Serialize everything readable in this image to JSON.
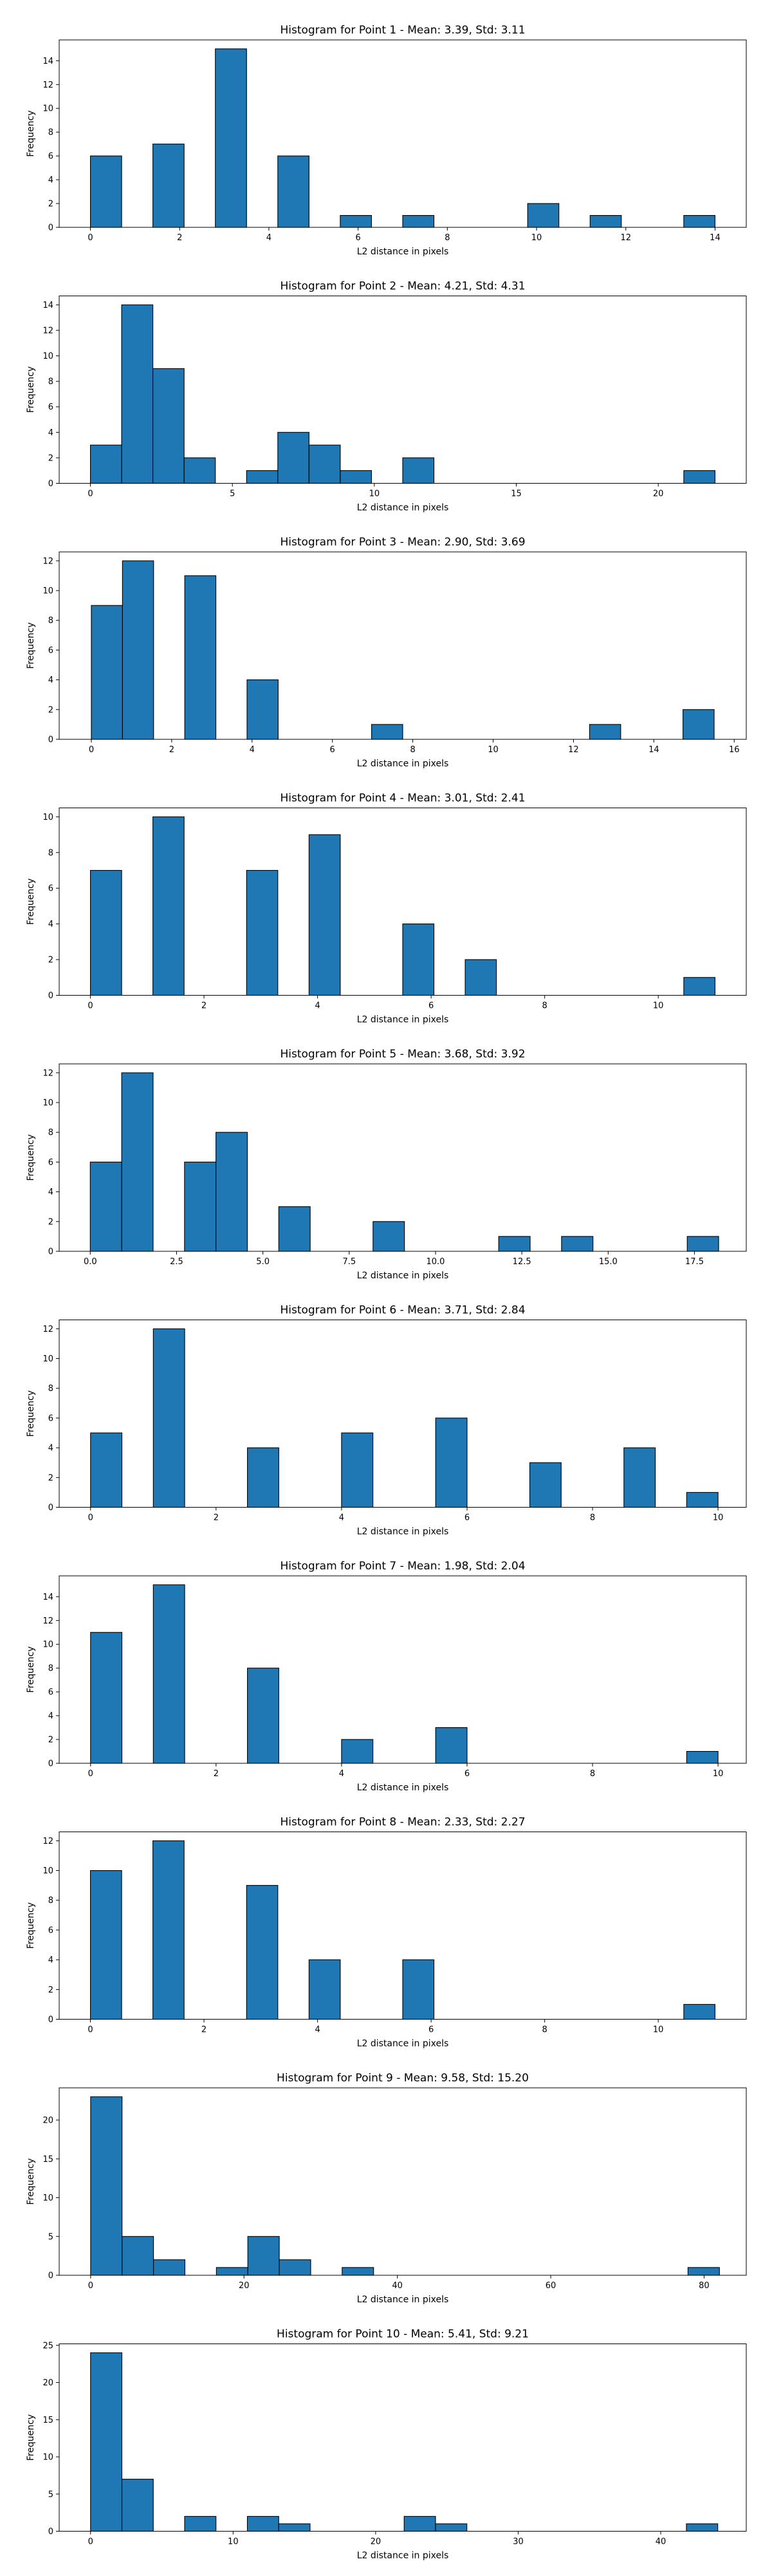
{
  "style": {
    "bar_color": "#1f77b4",
    "edge_color": "#000000",
    "background": "#ffffff"
  },
  "chart_data": [
    {
      "type": "bar",
      "title": "Histogram for Point 1 - Mean: 3.39, Std: 3.11",
      "xlabel": "L2 distance in pixels",
      "ylabel": "Frequency",
      "xlim": [
        -0.7,
        14.7
      ],
      "ylim": [
        0,
        15.75
      ],
      "xticks": [
        0,
        2,
        4,
        6,
        8,
        10,
        12,
        14
      ],
      "xtick_labels": [
        "0",
        "2",
        "4",
        "6",
        "8",
        "10",
        "12",
        "14"
      ],
      "yticks": [
        0,
        2,
        4,
        6,
        8,
        10,
        12,
        14
      ],
      "ytick_labels": [
        "0",
        "2",
        "4",
        "6",
        "8",
        "10",
        "12",
        "14"
      ],
      "bin_edges": [
        0,
        0.7,
        1.4,
        2.1,
        2.8,
        3.5,
        4.2,
        4.9,
        5.6,
        6.3,
        7.0,
        7.7,
        8.4,
        9.1,
        9.8,
        10.5,
        11.2,
        11.9,
        12.6,
        13.3,
        14.0
      ],
      "values": [
        6,
        0,
        7,
        0,
        15,
        0,
        6,
        0,
        1,
        0,
        1,
        0,
        0,
        0,
        2,
        0,
        1,
        0,
        0,
        1
      ]
    },
    {
      "type": "bar",
      "title": "Histogram for Point 2 - Mean: 4.21, Std: 4.31",
      "xlabel": "L2 distance in pixels",
      "ylabel": "Frequency",
      "xlim": [
        -1.1,
        23.1
      ],
      "ylim": [
        0,
        14.7
      ],
      "xticks": [
        0,
        5,
        10,
        15,
        20
      ],
      "xtick_labels": [
        "0",
        "5",
        "10",
        "15",
        "20"
      ],
      "yticks": [
        0,
        2,
        4,
        6,
        8,
        10,
        12,
        14
      ],
      "ytick_labels": [
        "0",
        "2",
        "4",
        "6",
        "8",
        "10",
        "12",
        "14"
      ],
      "bin_edges": [
        0,
        1.1,
        2.2,
        3.3,
        4.4,
        5.5,
        6.6,
        7.7,
        8.8,
        9.9,
        11.0,
        12.1,
        13.2,
        14.3,
        15.4,
        16.5,
        17.6,
        18.7,
        19.8,
        20.9,
        22.0
      ],
      "values": [
        3,
        14,
        9,
        2,
        0,
        1,
        4,
        3,
        1,
        0,
        2,
        0,
        0,
        0,
        0,
        0,
        0,
        0,
        0,
        1
      ]
    },
    {
      "type": "bar",
      "title": "Histogram for Point 3 - Mean: 2.90, Std: 3.69",
      "xlabel": "L2 distance in pixels",
      "ylabel": "Frequency",
      "xlim": [
        -0.8,
        16.3
      ],
      "ylim": [
        0,
        12.6
      ],
      "xticks": [
        0,
        2,
        4,
        6,
        8,
        10,
        12,
        14,
        16
      ],
      "xtick_labels": [
        "0",
        "2",
        "4",
        "6",
        "8",
        "10",
        "12",
        "14",
        "16"
      ],
      "yticks": [
        0,
        2,
        4,
        6,
        8,
        10,
        12
      ],
      "ytick_labels": [
        "0",
        "2",
        "4",
        "6",
        "8",
        "10",
        "12"
      ],
      "bin_edges": [
        0,
        0.775,
        1.55,
        2.325,
        3.1,
        3.875,
        4.65,
        5.425,
        6.2,
        6.975,
        7.75,
        8.525,
        9.3,
        10.075,
        10.85,
        11.625,
        12.4,
        13.175,
        13.95,
        14.725,
        15.5
      ],
      "values": [
        9,
        12,
        0,
        11,
        0,
        4,
        0,
        0,
        0,
        1,
        0,
        0,
        0,
        0,
        0,
        0,
        1,
        0,
        0,
        2
      ]
    },
    {
      "type": "bar",
      "title": "Histogram for Point 4 - Mean: 3.01, Std: 2.41",
      "xlabel": "L2 distance in pixels",
      "ylabel": "Frequency",
      "xlim": [
        -0.55,
        11.55
      ],
      "ylim": [
        0,
        10.5
      ],
      "xticks": [
        0,
        2,
        4,
        6,
        8,
        10
      ],
      "xtick_labels": [
        "0",
        "2",
        "4",
        "6",
        "8",
        "10"
      ],
      "yticks": [
        0,
        2,
        4,
        6,
        8,
        10
      ],
      "ytick_labels": [
        "0",
        "2",
        "4",
        "6",
        "8",
        "10"
      ],
      "bin_edges": [
        0,
        0.55,
        1.1,
        1.65,
        2.2,
        2.75,
        3.3,
        3.85,
        4.4,
        4.95,
        5.5,
        6.05,
        6.6,
        7.15,
        7.7,
        8.25,
        8.8,
        9.35,
        9.9,
        10.45,
        11.0
      ],
      "values": [
        7,
        0,
        10,
        0,
        0,
        7,
        0,
        9,
        0,
        0,
        4,
        0,
        2,
        0,
        0,
        0,
        0,
        0,
        0,
        1
      ]
    },
    {
      "type": "bar",
      "title": "Histogram for Point 5 - Mean: 3.68, Std: 3.92",
      "xlabel": "L2 distance in pixels",
      "ylabel": "Frequency",
      "xlim": [
        -0.9,
        19.0
      ],
      "ylim": [
        0,
        12.6
      ],
      "xticks": [
        0.0,
        2.5,
        5.0,
        7.5,
        10.0,
        12.5,
        15.0,
        17.5
      ],
      "xtick_labels": [
        "0.0",
        "2.5",
        "5.0",
        "7.5",
        "10.0",
        "12.5",
        "15.0",
        "17.5"
      ],
      "yticks": [
        0,
        2,
        4,
        6,
        8,
        10,
        12
      ],
      "ytick_labels": [
        "0",
        "2",
        "4",
        "6",
        "8",
        "10",
        "12"
      ],
      "bin_edges": [
        0,
        0.91,
        1.82,
        2.73,
        3.64,
        4.55,
        5.46,
        6.37,
        7.28,
        8.19,
        9.1,
        10.01,
        10.92,
        11.83,
        12.74,
        13.65,
        14.56,
        15.47,
        16.38,
        17.29,
        18.2
      ],
      "values": [
        6,
        12,
        0,
        6,
        8,
        0,
        3,
        0,
        0,
        2,
        0,
        0,
        0,
        1,
        0,
        1,
        0,
        0,
        0,
        1
      ]
    },
    {
      "type": "bar",
      "title": "Histogram for Point 6 - Mean: 3.71, Std: 2.84",
      "xlabel": "L2 distance in pixels",
      "ylabel": "Frequency",
      "xlim": [
        -0.5,
        10.45
      ],
      "ylim": [
        0,
        12.6
      ],
      "xticks": [
        0,
        2,
        4,
        6,
        8,
        10
      ],
      "xtick_labels": [
        "0",
        "2",
        "4",
        "6",
        "8",
        "10"
      ],
      "yticks": [
        0,
        2,
        4,
        6,
        8,
        10,
        12
      ],
      "ytick_labels": [
        "0",
        "2",
        "4",
        "6",
        "8",
        "10",
        "12"
      ],
      "bin_edges": [
        0,
        0.5,
        1.0,
        1.5,
        2.0,
        2.5,
        3.0,
        3.5,
        4.0,
        4.5,
        5.0,
        5.5,
        6.0,
        6.5,
        7.0,
        7.5,
        8.0,
        8.5,
        9.0,
        9.5,
        10.0
      ],
      "values": [
        5,
        0,
        12,
        0,
        0,
        4,
        0,
        0,
        5,
        0,
        0,
        6,
        0,
        0,
        3,
        0,
        0,
        4,
        0,
        1
      ]
    },
    {
      "type": "bar",
      "title": "Histogram for Point 7 - Mean: 1.98, Std: 2.04",
      "xlabel": "L2 distance in pixels",
      "ylabel": "Frequency",
      "xlim": [
        -0.5,
        10.45
      ],
      "ylim": [
        0,
        15.75
      ],
      "xticks": [
        0,
        2,
        4,
        6,
        8,
        10
      ],
      "xtick_labels": [
        "0",
        "2",
        "4",
        "6",
        "8",
        "10"
      ],
      "yticks": [
        0,
        2,
        4,
        6,
        8,
        10,
        12,
        14
      ],
      "ytick_labels": [
        "0",
        "2",
        "4",
        "6",
        "8",
        "10",
        "12",
        "14"
      ],
      "bin_edges": [
        0,
        0.5,
        1.0,
        1.5,
        2.0,
        2.5,
        3.0,
        3.5,
        4.0,
        4.5,
        5.0,
        5.5,
        6.0,
        6.5,
        7.0,
        7.5,
        8.0,
        8.5,
        9.0,
        9.5,
        10.0
      ],
      "values": [
        11,
        0,
        15,
        0,
        0,
        8,
        0,
        0,
        2,
        0,
        0,
        3,
        0,
        0,
        0,
        0,
        0,
        0,
        0,
        1
      ]
    },
    {
      "type": "bar",
      "title": "Histogram for Point 8 - Mean: 2.33, Std: 2.27",
      "xlabel": "L2 distance in pixels",
      "ylabel": "Frequency",
      "xlim": [
        -0.55,
        11.55
      ],
      "ylim": [
        0,
        12.6
      ],
      "xticks": [
        0,
        2,
        4,
        6,
        8,
        10
      ],
      "xtick_labels": [
        "0",
        "2",
        "4",
        "6",
        "8",
        "10"
      ],
      "yticks": [
        0,
        2,
        4,
        6,
        8,
        10,
        12
      ],
      "ytick_labels": [
        "0",
        "2",
        "4",
        "6",
        "8",
        "10",
        "12"
      ],
      "bin_edges": [
        0,
        0.55,
        1.1,
        1.65,
        2.2,
        2.75,
        3.3,
        3.85,
        4.4,
        4.95,
        5.5,
        6.05,
        6.6,
        7.15,
        7.7,
        8.25,
        8.8,
        9.35,
        9.9,
        10.45,
        11.0
      ],
      "values": [
        10,
        0,
        12,
        0,
        0,
        9,
        0,
        4,
        0,
        0,
        4,
        0,
        0,
        0,
        0,
        0,
        0,
        0,
        0,
        1
      ]
    },
    {
      "type": "bar",
      "title": "Histogram for Point 9 - Mean: 9.58, Std: 15.20",
      "xlabel": "L2 distance in pixels",
      "ylabel": "Frequency",
      "xlim": [
        -4.1,
        85.5
      ],
      "ylim": [
        0,
        24.15
      ],
      "xticks": [
        0,
        20,
        40,
        60,
        80
      ],
      "xtick_labels": [
        "0",
        "20",
        "40",
        "60",
        "80"
      ],
      "yticks": [
        0,
        5,
        10,
        15,
        20
      ],
      "ytick_labels": [
        "0",
        "5",
        "10",
        "15",
        "20"
      ],
      "bin_edges": [
        0,
        4.1,
        8.2,
        12.3,
        16.4,
        20.5,
        24.6,
        28.7,
        32.8,
        36.9,
        41.0,
        45.1,
        49.2,
        53.3,
        57.4,
        61.5,
        65.6,
        69.7,
        73.8,
        77.9,
        82.0
      ],
      "values": [
        23,
        5,
        2,
        0,
        1,
        5,
        2,
        0,
        1,
        0,
        0,
        0,
        0,
        0,
        0,
        0,
        0,
        0,
        0,
        1
      ]
    },
    {
      "type": "bar",
      "title": "Histogram for Point 10 - Mean: 5.41, Std: 9.21",
      "xlabel": "L2 distance in pixels",
      "ylabel": "Frequency",
      "xlim": [
        -2.2,
        46.0
      ],
      "ylim": [
        0,
        25.2
      ],
      "xticks": [
        0,
        10,
        20,
        30,
        40
      ],
      "xtick_labels": [
        "0",
        "10",
        "20",
        "30",
        "40"
      ],
      "yticks": [
        0,
        5,
        10,
        15,
        20,
        25
      ],
      "ytick_labels": [
        "0",
        "5",
        "10",
        "15",
        "20",
        "25"
      ],
      "bin_edges": [
        0,
        2.2,
        4.4,
        6.6,
        8.8,
        11.0,
        13.2,
        15.4,
        17.6,
        19.8,
        22.0,
        24.2,
        26.4,
        28.6,
        30.8,
        33.0,
        35.2,
        37.4,
        39.6,
        41.8,
        44.0
      ],
      "values": [
        24,
        7,
        0,
        2,
        0,
        2,
        1,
        0,
        0,
        0,
        2,
        1,
        0,
        0,
        0,
        0,
        0,
        0,
        0,
        1
      ]
    }
  ]
}
